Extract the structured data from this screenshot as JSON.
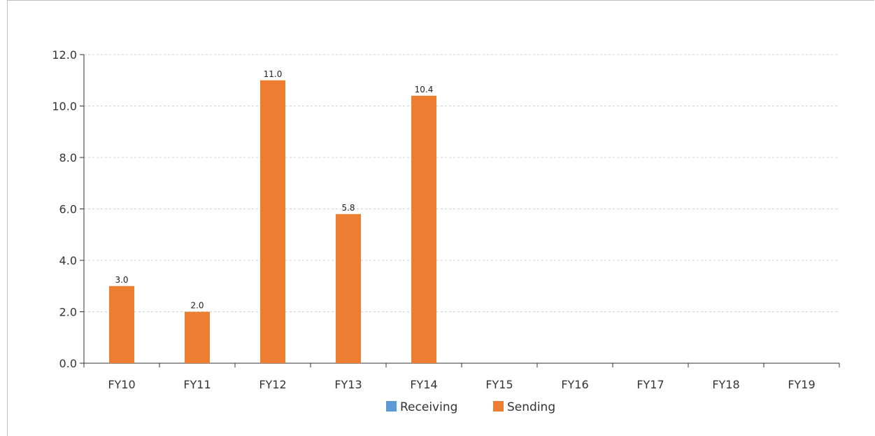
{
  "chart_data": {
    "type": "bar",
    "title": "",
    "xlabel": "",
    "ylabel": "",
    "categories": [
      "FY10",
      "FY11",
      "FY12",
      "FY13",
      "FY14",
      "FY15",
      "FY16",
      "FY17",
      "FY18",
      "FY19"
    ],
    "series": [
      {
        "name": "Receiving",
        "color": "#5b9bd5",
        "values": [
          0,
          0,
          0,
          0,
          0,
          0,
          0,
          0,
          0,
          0
        ]
      },
      {
        "name": "Sending",
        "color": "#ed7d31",
        "values": [
          3.0,
          2.0,
          11.0,
          5.8,
          10.4,
          0,
          0,
          0,
          0,
          0
        ],
        "data_labels": [
          "3.0",
          "2.0",
          "11.0",
          "5.8",
          "10.4",
          "",
          "",
          "",
          "",
          ""
        ]
      }
    ],
    "ylim": [
      0,
      12
    ],
    "y_ticks": [
      "0.0",
      "2.0",
      "4.0",
      "6.0",
      "8.0",
      "10.0",
      "12.0"
    ],
    "grid": true,
    "grid_style": "dashed",
    "legend_position": "bottom-center"
  }
}
